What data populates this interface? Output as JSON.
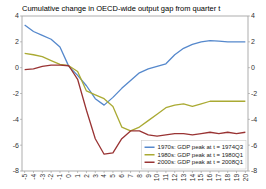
{
  "chart_data": {
    "type": "line",
    "title": "Cumulative change in OECD-wide output gap from quarter t",
    "x": [
      -5,
      -4,
      -3,
      -2,
      -1,
      0,
      1,
      2,
      3,
      4,
      5,
      6,
      7,
      8,
      9,
      10,
      11,
      12,
      13,
      14,
      15,
      16,
      17,
      18,
      19,
      20
    ],
    "series": [
      {
        "name": "1970s: GDP peak at t = 1974Q3",
        "color": "#5588cc",
        "values": [
          3.3,
          2.8,
          2.5,
          2.2,
          1.6,
          0.1,
          -0.6,
          -1.4,
          -2.4,
          -2.9,
          -2.3,
          -1.6,
          -1.0,
          -0.4,
          -0.1,
          0.1,
          0.3,
          1.0,
          1.5,
          1.8,
          2.0,
          2.1,
          2.05,
          2.0,
          2.0,
          2.0
        ]
      },
      {
        "name": "1980s: GDP peak at t = 1980Q1",
        "color": "#aaaa33",
        "values": [
          1.1,
          1.0,
          0.85,
          0.55,
          0.25,
          0.15,
          -0.3,
          -1.8,
          -2.1,
          -2.4,
          -3.0,
          -4.6,
          -4.9,
          -4.6,
          -4.1,
          -3.6,
          -3.1,
          -2.9,
          -2.8,
          -3.0,
          -2.8,
          -2.6,
          -2.6,
          -2.6,
          -2.6,
          -2.6
        ]
      },
      {
        "name": "2000s: GDP peak at t = 2008Q1",
        "color": "#993333",
        "values": [
          -0.15,
          -0.1,
          0.1,
          0.2,
          0.2,
          0.15,
          -0.9,
          -3.3,
          -5.5,
          -6.7,
          -6.6,
          -5.5,
          -4.9,
          -4.9,
          -5.2,
          -5.3,
          -5.2,
          -5.1,
          -5.1,
          -5.2,
          -5.1,
          -5.0,
          -5.1,
          -5.0,
          -5.1,
          -5.0
        ]
      }
    ],
    "xlim": [
      -5.3,
      20.3
    ],
    "xticks": [
      -5,
      -4,
      -3,
      -2,
      -1,
      0,
      1,
      2,
      3,
      4,
      5,
      6,
      7,
      8,
      9,
      10,
      11,
      12,
      13,
      14,
      15,
      16,
      17,
      18,
      19,
      20
    ],
    "ylim": [
      -8,
      4
    ],
    "yticks": [
      -8,
      -6,
      -4,
      -2,
      0,
      2,
      4
    ],
    "y2lim": [
      -8,
      4
    ],
    "y2ticks": [
      -8,
      -6,
      -4,
      -2,
      0,
      2,
      4
    ],
    "legend": "lower right"
  }
}
